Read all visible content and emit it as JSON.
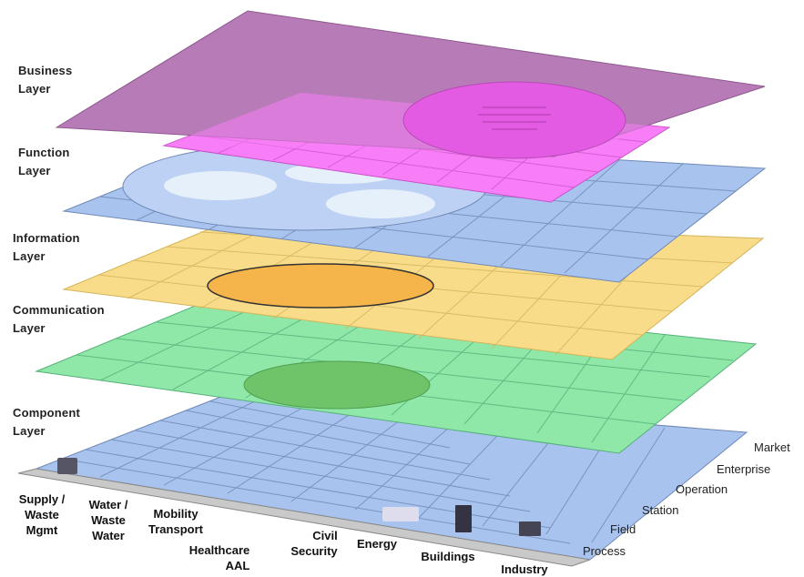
{
  "layers": [
    {
      "line1": "Business",
      "line2": "Layer"
    },
    {
      "line1": "Function",
      "line2": "Layer"
    },
    {
      "line1": "Information",
      "line2": "Layer"
    },
    {
      "line1": "Communication",
      "line2": "Layer"
    },
    {
      "line1": "Component",
      "line2": "Layer"
    }
  ],
  "domains": [
    {
      "line1": "Supply /",
      "line2": "Waste",
      "line3": "Mgmt"
    },
    {
      "line1": "Water /",
      "line2": "Waste",
      "line3": "Water"
    },
    {
      "line1": "Mobility",
      "line2": "Transport",
      "line3": ""
    },
    {
      "line1": "Healthcare",
      "line2": "AAL",
      "line3": ""
    },
    {
      "line1": "Civil",
      "line2": "Security",
      "line3": ""
    },
    {
      "line1": "Energy",
      "line2": "",
      "line3": ""
    },
    {
      "line1": "Buildings",
      "line2": "",
      "line3": ""
    },
    {
      "line1": "Industry",
      "line2": "",
      "line3": ""
    }
  ],
  "zones": [
    "Process",
    "Field",
    "Station",
    "Operation",
    "Enterprise",
    "Market"
  ],
  "colors": {
    "business": "#b77bb7",
    "function": "#f77ef7",
    "information": "#a9c3ef",
    "communication": "#f9dc8a",
    "component_layer": "#8fe8a8",
    "base": "#a9c3ef",
    "strip": "#c9c9c9",
    "grid": "#6f88b5"
  }
}
